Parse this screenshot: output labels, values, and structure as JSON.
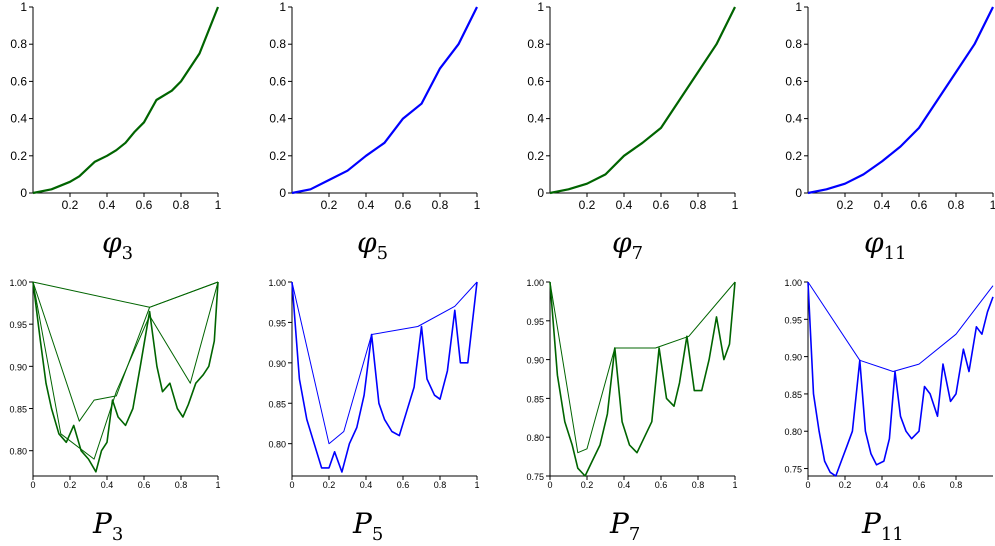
{
  "colors": {
    "green": "#006400",
    "blue": "#0000ff",
    "axis": "#000000"
  },
  "chart_data": [
    {
      "type": "line",
      "caption": {
        "symbol": "φ",
        "sub": "3"
      },
      "color": "green",
      "xlim": [
        0,
        1
      ],
      "ylim": [
        0,
        1
      ],
      "xticks": [
        "0.2",
        "0.4",
        "0.6",
        "0.8",
        "1"
      ],
      "yticks": [
        "0",
        "0.2",
        "0.4",
        "0.6",
        "0.8",
        "1"
      ],
      "x": [
        0,
        0.1,
        0.2,
        0.25,
        0.333,
        0.4,
        0.45,
        0.5,
        0.55,
        0.6,
        0.667,
        0.75,
        0.8,
        0.9,
        1
      ],
      "y": [
        0,
        0.02,
        0.06,
        0.09,
        0.167,
        0.2,
        0.23,
        0.27,
        0.33,
        0.38,
        0.5,
        0.55,
        0.6,
        0.75,
        1
      ]
    },
    {
      "type": "line",
      "caption": {
        "symbol": "φ",
        "sub": "5"
      },
      "color": "blue",
      "xlim": [
        0,
        1
      ],
      "ylim": [
        0,
        1
      ],
      "xticks": [
        "0.2",
        "0.4",
        "0.6",
        "0.8",
        "1"
      ],
      "yticks": [
        "0",
        "0.2",
        "0.4",
        "0.6",
        "0.8",
        "1"
      ],
      "x": [
        0,
        0.1,
        0.2,
        0.3,
        0.4,
        0.5,
        0.6,
        0.7,
        0.8,
        0.9,
        1
      ],
      "y": [
        0,
        0.02,
        0.07,
        0.12,
        0.2,
        0.27,
        0.4,
        0.48,
        0.67,
        0.8,
        1
      ]
    },
    {
      "type": "line",
      "caption": {
        "symbol": "φ",
        "sub": "7"
      },
      "color": "green",
      "xlim": [
        0,
        1
      ],
      "ylim": [
        0,
        1
      ],
      "xticks": [
        "0.2",
        "0.4",
        "0.6",
        "0.8",
        "1"
      ],
      "yticks": [
        "0",
        "0.2",
        "0.4",
        "0.6",
        "0.8",
        "1"
      ],
      "x": [
        0,
        0.1,
        0.2,
        0.3,
        0.4,
        0.5,
        0.6,
        0.7,
        0.8,
        0.9,
        1
      ],
      "y": [
        0,
        0.02,
        0.05,
        0.1,
        0.2,
        0.27,
        0.35,
        0.5,
        0.65,
        0.8,
        1
      ]
    },
    {
      "type": "line",
      "caption": {
        "symbol": "φ",
        "sub": "11"
      },
      "color": "blue",
      "xlim": [
        0,
        1
      ],
      "ylim": [
        0,
        1
      ],
      "xticks": [
        "0.2",
        "0.4",
        "0.6",
        "0.8",
        "1"
      ],
      "yticks": [
        "0",
        "0.2",
        "0.4",
        "0.6",
        "0.8",
        "1"
      ],
      "x": [
        0,
        0.1,
        0.2,
        0.3,
        0.4,
        0.5,
        0.6,
        0.7,
        0.8,
        0.9,
        1
      ],
      "y": [
        0,
        0.02,
        0.05,
        0.1,
        0.17,
        0.25,
        0.35,
        0.5,
        0.65,
        0.8,
        1
      ]
    },
    {
      "type": "line",
      "caption": {
        "symbol": "P",
        "sub": "3"
      },
      "color": "green",
      "xlim": [
        0,
        1
      ],
      "ylim": [
        0.77,
        1
      ],
      "xticks": [
        "0",
        "0.2",
        "0.4",
        "0.6",
        "0.8",
        "1"
      ],
      "yticks": [
        "0.80",
        "0.85",
        "0.90",
        "0.95",
        "1.00"
      ],
      "series": [
        {
          "x": [
            0,
            0.04,
            0.07,
            0.1,
            0.14,
            0.18,
            0.22,
            0.26,
            0.3,
            0.34,
            0.37,
            0.4,
            0.43,
            0.46,
            0.5,
            0.54,
            0.58,
            0.63,
            0.67,
            0.7,
            0.74,
            0.78,
            0.81,
            0.84,
            0.88,
            0.92,
            0.95,
            0.98,
            1
          ],
          "y": [
            1,
            0.93,
            0.88,
            0.85,
            0.82,
            0.81,
            0.83,
            0.8,
            0.79,
            0.775,
            0.8,
            0.81,
            0.86,
            0.84,
            0.83,
            0.85,
            0.9,
            0.965,
            0.9,
            0.87,
            0.88,
            0.85,
            0.84,
            0.855,
            0.88,
            0.89,
            0.9,
            0.93,
            1
          ]
        },
        {
          "x": [
            0,
            0.25,
            0.33,
            0.45,
            0.63,
            1
          ],
          "y": [
            1,
            0.835,
            0.86,
            0.865,
            0.97,
            1
          ]
        },
        {
          "x": [
            0,
            0.63,
            1
          ],
          "y": [
            1,
            0.97,
            1
          ]
        },
        {
          "x": [
            0,
            0.15,
            0.33,
            0.45,
            0.63,
            0.85,
            1
          ],
          "y": [
            1,
            0.82,
            0.79,
            0.87,
            0.96,
            0.88,
            1
          ]
        }
      ]
    },
    {
      "type": "line",
      "caption": {
        "symbol": "P",
        "sub": "5"
      },
      "color": "blue",
      "xlim": [
        0,
        1
      ],
      "ylim": [
        0.76,
        1
      ],
      "xticks": [
        "0",
        "0.2",
        "0.4",
        "0.6",
        "0.8",
        "1"
      ],
      "yticks": [
        "0.80",
        "0.85",
        "0.90",
        "0.95",
        "1.00"
      ],
      "series": [
        {
          "x": [
            0,
            0.04,
            0.08,
            0.12,
            0.16,
            0.2,
            0.23,
            0.27,
            0.31,
            0.35,
            0.39,
            0.43,
            0.47,
            0.5,
            0.54,
            0.58,
            0.62,
            0.66,
            0.7,
            0.73,
            0.77,
            0.8,
            0.84,
            0.88,
            0.91,
            0.95,
            1
          ],
          "y": [
            1,
            0.88,
            0.83,
            0.8,
            0.77,
            0.77,
            0.79,
            0.765,
            0.8,
            0.82,
            0.86,
            0.935,
            0.85,
            0.83,
            0.815,
            0.81,
            0.84,
            0.87,
            0.945,
            0.88,
            0.86,
            0.855,
            0.89,
            0.965,
            0.9,
            0.9,
            1
          ]
        },
        {
          "x": [
            0,
            0.2,
            0.28,
            0.43,
            0.68,
            0.88,
            1
          ],
          "y": [
            1,
            0.8,
            0.815,
            0.935,
            0.945,
            0.97,
            1
          ]
        }
      ]
    },
    {
      "type": "line",
      "caption": {
        "symbol": "P",
        "sub": "7"
      },
      "color": "green",
      "xlim": [
        0,
        1
      ],
      "ylim": [
        0.75,
        1
      ],
      "xticks": [
        "0",
        "0.2",
        "0.4",
        "0.6",
        "0.8",
        "1"
      ],
      "yticks": [
        "0.75",
        "0.80",
        "0.85",
        "0.90",
        "0.95",
        "1.00"
      ],
      "series": [
        {
          "x": [
            0,
            0.04,
            0.08,
            0.12,
            0.15,
            0.19,
            0.23,
            0.27,
            0.31,
            0.35,
            0.39,
            0.43,
            0.47,
            0.51,
            0.55,
            0.59,
            0.63,
            0.67,
            0.7,
            0.74,
            0.78,
            0.82,
            0.86,
            0.9,
            0.94,
            0.97,
            1
          ],
          "y": [
            1,
            0.88,
            0.82,
            0.79,
            0.76,
            0.75,
            0.77,
            0.79,
            0.83,
            0.915,
            0.82,
            0.79,
            0.78,
            0.8,
            0.82,
            0.915,
            0.85,
            0.84,
            0.87,
            0.93,
            0.86,
            0.86,
            0.9,
            0.955,
            0.9,
            0.92,
            1
          ]
        },
        {
          "x": [
            0,
            0.15,
            0.2,
            0.35,
            0.57,
            0.75,
            1
          ],
          "y": [
            1,
            0.78,
            0.785,
            0.915,
            0.915,
            0.93,
            1
          ]
        }
      ]
    },
    {
      "type": "line",
      "caption": {
        "symbol": "P",
        "sub": "11"
      },
      "color": "blue",
      "xlim": [
        0,
        1
      ],
      "ylim": [
        0.74,
        1
      ],
      "xticks": [
        "0",
        "0.2",
        "0.4",
        "0.6",
        "0.8"
      ],
      "yticks": [
        "0.75",
        "0.80",
        "0.85",
        "0.90",
        "0.95",
        "1.00"
      ],
      "series": [
        {
          "x": [
            0,
            0.03,
            0.06,
            0.09,
            0.12,
            0.15,
            0.18,
            0.21,
            0.24,
            0.28,
            0.31,
            0.34,
            0.37,
            0.41,
            0.44,
            0.47,
            0.5,
            0.53,
            0.56,
            0.6,
            0.63,
            0.66,
            0.7,
            0.73,
            0.77,
            0.8,
            0.84,
            0.87,
            0.91,
            0.94,
            0.97,
            1
          ],
          "y": [
            1,
            0.85,
            0.8,
            0.76,
            0.745,
            0.74,
            0.76,
            0.78,
            0.8,
            0.895,
            0.8,
            0.77,
            0.755,
            0.76,
            0.79,
            0.88,
            0.82,
            0.8,
            0.79,
            0.8,
            0.86,
            0.85,
            0.82,
            0.89,
            0.84,
            0.85,
            0.91,
            0.88,
            0.94,
            0.93,
            0.96,
            0.98
          ]
        },
        {
          "x": [
            0,
            0.28,
            0.46,
            0.6,
            0.8,
            1
          ],
          "y": [
            1,
            0.895,
            0.88,
            0.89,
            0.93,
            0.995
          ]
        }
      ]
    }
  ]
}
